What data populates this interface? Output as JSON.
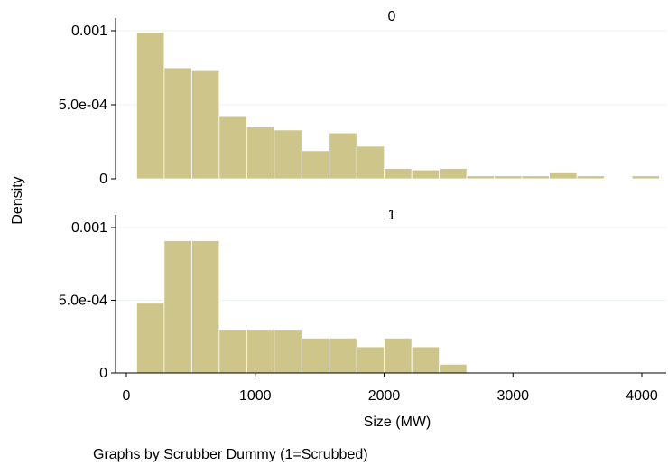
{
  "chart_data": {
    "type": "bar",
    "subtype": "histogram",
    "ylabel": "Density",
    "xlabel": "Size (MW)",
    "note": "Graphs by Scrubber Dummy (1=Scrubbed)",
    "xlim": [
      0,
      4200
    ],
    "x_ticks": [
      "0",
      "1000",
      "2000",
      "3000",
      "4000"
    ],
    "x_tick_values": [
      0,
      1000,
      2000,
      3000,
      4000
    ],
    "ylim": [
      0,
      0.00106
    ],
    "y_ticks": [
      "0",
      "5.0e-04",
      "0.001"
    ],
    "y_tick_values": [
      0,
      0.0005,
      0.001
    ],
    "bin_start": 80,
    "bin_width": 213.5,
    "bar_color": "#cdc58a",
    "grid": "horizontal",
    "panels": [
      {
        "title": "0",
        "densities": [
          0.00099,
          0.00075,
          0.00073,
          0.00042,
          0.00035,
          0.00033,
          0.00019,
          0.00031,
          0.00022,
          7e-05,
          6e-05,
          7e-05,
          2e-05,
          2e-05,
          2e-05,
          4e-05,
          2e-05,
          0,
          2e-05
        ]
      },
      {
        "title": "1",
        "densities": [
          0.00048,
          0.00091,
          0.00091,
          0.0003,
          0.0003,
          0.0003,
          0.00024,
          0.00024,
          0.00018,
          0.00024,
          0.00018,
          6e-05
        ]
      }
    ]
  }
}
